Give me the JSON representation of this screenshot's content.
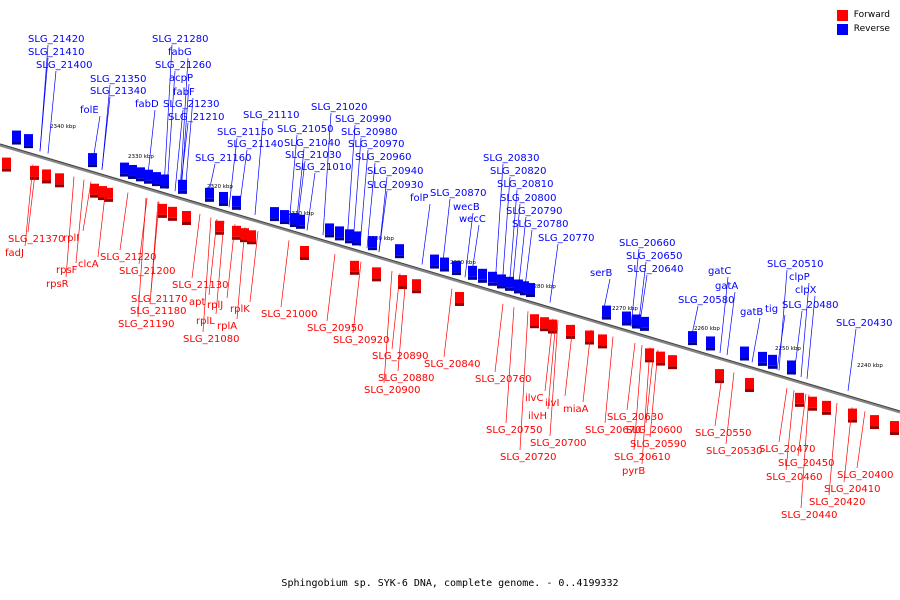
{
  "legend": {
    "forward": {
      "label": "Forward",
      "color": "#ff0000"
    },
    "reverse": {
      "label": "Reverse",
      "color": "#0000ff"
    }
  },
  "caption": "Sphingobium sp. SYK-6 DNA, complete genome. - 0..4199332",
  "ticks": [
    "2340 kbp",
    "2330 kbp",
    "2320 kbp",
    "2310 kbp",
    "2300 kbp",
    "2290 kbp",
    "2280 kbp",
    "2270 kbp",
    "2260 kbp",
    "2250 kbp",
    "2240 kbp"
  ],
  "reverse_genes": [
    "SLG_21420",
    "SLG_21410",
    "SLG_21400",
    "SLG_21350",
    "SLG_21340",
    "folE",
    "SLG_21280",
    "fabG",
    "SLG_21260",
    "acpP",
    "fabF",
    "fabD",
    "SLG_21230",
    "SLG_21210",
    "SLG_21110",
    "SLG_21150",
    "SLG_21140",
    "SLG_21160",
    "SLG_21020",
    "SLG_20990",
    "SLG_21050",
    "SLG_20980",
    "SLG_21040",
    "SLG_20970",
    "SLG_21030",
    "SLG_20960",
    "SLG_21010",
    "SLG_20940",
    "SLG_20930",
    "folP",
    "SLG_20870",
    "wecB",
    "wecC",
    "SLG_20830",
    "SLG_20820",
    "SLG_20810",
    "SLG_20800",
    "SLG_20790",
    "SLG_20780",
    "SLG_20770",
    "serB",
    "SLG_20660",
    "SLG_20650",
    "SLG_20640",
    "gatC",
    "gatA",
    "SLG_20580",
    "gatB",
    "tig",
    "SLG_20510",
    "clpP",
    "clpX",
    "SLG_20480",
    "SLG_20430"
  ],
  "forward_genes": [
    "SLG_21370",
    "fadJ",
    "rplI",
    "rpsF",
    "rpsR",
    "clcA",
    "SLG_21220",
    "SLG_21200",
    "SLG_21130",
    "apt",
    "rplJ",
    "rplL",
    "rplK",
    "rplA",
    "SLG_21170",
    "SLG_21180",
    "SLG_21190",
    "SLG_21080",
    "SLG_21000",
    "SLG_20950",
    "SLG_20920",
    "SLG_20890",
    "SLG_20880",
    "SLG_20900",
    "SLG_20840",
    "SLG_20760",
    "ilvC",
    "ilvI",
    "ilvH",
    "miaA",
    "SLG_20750",
    "SLG_20700",
    "SLG_20720",
    "SLG_20670",
    "SLG_20630",
    "SLG_20600",
    "SLG_20590",
    "SLG_20610",
    "pyrB",
    "SLG_20550",
    "SLG_20530",
    "SLG_20470",
    "SLG_20450",
    "SLG_20460",
    "SLG_20400",
    "SLG_20410",
    "SLG_20420",
    "SLG_20440"
  ]
}
